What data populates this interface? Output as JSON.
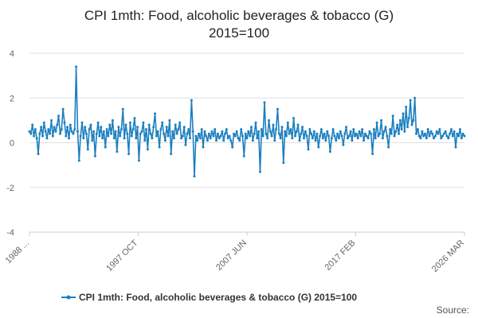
{
  "chart_data": {
    "type": "line",
    "title_lines": [
      "CPI 1mth: Food, alcoholic beverages & tobacco (G)",
      "2015=100"
    ],
    "x_tick_labels": [
      "1988 ...",
      "1997 OCT",
      "2007 JUN",
      "2017 FEB",
      "2026 MAR"
    ],
    "y_ticks": [
      4,
      2,
      0,
      -2,
      -4
    ],
    "ylim": [
      -4,
      4
    ],
    "grid": "horizontal",
    "legend_position": "bottom",
    "source_label": "Source:",
    "series": [
      {
        "name": "CPI 1mth: Food, alcoholic beverages & tobacco (G) 2015=100",
        "color": "#1c7fbf",
        "values": [
          0.5,
          0.4,
          0.8,
          0.3,
          0.6,
          0.2,
          -0.5,
          0.4,
          0.7,
          0.3,
          0.9,
          0.5,
          0.2,
          0.6,
          0.4,
          1.0,
          0.3,
          0.7,
          0.5,
          0.8,
          1.2,
          0.4,
          0.6,
          1.5,
          0.9,
          0.3,
          0.7,
          0.2,
          0.8,
          0.5,
          0.4,
          0.6,
          3.4,
          0.5,
          -0.8,
          0.3,
          0.9,
          0.2,
          0.7,
          0.4,
          -0.3,
          0.6,
          0.8,
          0.1,
          0.5,
          -0.6,
          0.4,
          0.9,
          0.3,
          0.7,
          0.2,
          0.5,
          -0.2,
          0.6,
          0.3,
          0.8,
          0.4,
          1.0,
          0.2,
          0.5,
          -0.4,
          0.7,
          0.3,
          0.6,
          1.5,
          0.2,
          0.8,
          0.4,
          -0.5,
          0.9,
          0.3,
          0.6,
          1.1,
          0.2,
          0.7,
          -0.8,
          0.4,
          0.5,
          0.9,
          0.1,
          0.6,
          -0.3,
          0.8,
          0.4,
          0.2,
          0.7,
          1.3,
          0.3,
          0.5,
          -0.2,
          0.6,
          0.9,
          0.4,
          0.1,
          0.7,
          0.3,
          1.0,
          -0.5,
          0.5,
          0.2,
          0.8,
          0.4,
          0.6,
          0.9,
          0.2,
          0.3,
          0.7,
          -0.1,
          0.4,
          0.6,
          0.2,
          1.9,
          0.5,
          -1.5,
          0.3,
          0.1,
          0.4,
          0.2,
          0.6,
          -0.2,
          0.5,
          0.3,
          0.1,
          0.4,
          0.2,
          0.5,
          0.3,
          0.6,
          0.1,
          0.4,
          0.2,
          0.3,
          0.5,
          0.1,
          0.4,
          0.6,
          0.2,
          0.3,
          0.1,
          -0.2,
          0.4,
          0.3,
          0.5,
          0.2,
          0.1,
          0.6,
          0.3,
          -0.6,
          0.4,
          0.2,
          0.5,
          0.3,
          0.7,
          0.1,
          0.4,
          0.9,
          0.2,
          0.5,
          -1.3,
          0.6,
          0.3,
          1.8,
          0.4,
          0.2,
          1.0,
          0.5,
          0.3,
          0.8,
          0.1,
          0.6,
          1.5,
          0.4,
          0.2,
          0.7,
          -0.9,
          0.5,
          0.3,
          0.9,
          0.4,
          0.6,
          0.2,
          1.1,
          0.3,
          0.5,
          0.8,
          0.1,
          0.4,
          0.7,
          0.2,
          0.5,
          0.3,
          -0.3,
          0.6,
          0.4,
          0.2,
          0.5,
          0.1,
          0.4,
          -0.2,
          0.3,
          0.6,
          0.2,
          0.4,
          0.1,
          0.5,
          0.3,
          -0.4,
          0.2,
          0.6,
          0.3,
          0.1,
          0.4,
          0.2,
          0.5,
          0.3,
          -0.1,
          0.4,
          0.7,
          0.2,
          0.3,
          0.5,
          0.1,
          0.6,
          0.3,
          0.4,
          0.2,
          0.5,
          0.3,
          0.6,
          0.1,
          0.4,
          0.3,
          0.2,
          0.5,
          0.4,
          -0.5,
          0.6,
          0.2,
          0.9,
          0.3,
          0.4,
          1.0,
          0.2,
          0.5,
          0.7,
          0.3,
          -0.2,
          0.6,
          0.4,
          1.2,
          0.3,
          0.5,
          0.8,
          0.4,
          1.0,
          0.6,
          1.3,
          0.5,
          1.6,
          0.7,
          1.1,
          1.9,
          0.8,
          1.0,
          2.0,
          0.4,
          0.6,
          0.3,
          0.2,
          0.5,
          0.3,
          0.4,
          0.2,
          0.6,
          0.3,
          0.5,
          0.4,
          0.2,
          0.3,
          0.5,
          0.4,
          0.6,
          0.2,
          0.3,
          0.4,
          0.5,
          0.3,
          0.2,
          0.4,
          0.6,
          0.3,
          0.5,
          -0.2,
          0.4,
          0.3,
          0.6,
          0.2,
          0.4,
          0.3
        ]
      }
    ]
  }
}
